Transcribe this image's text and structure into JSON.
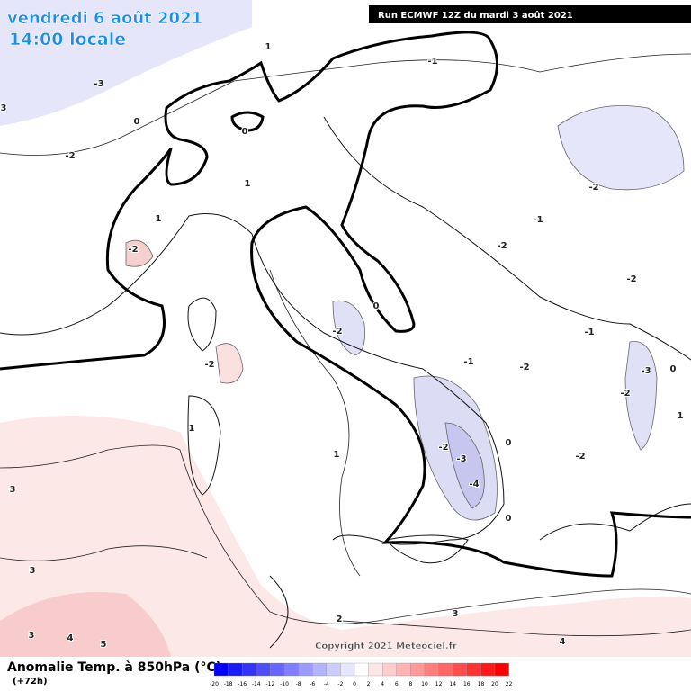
{
  "header": {
    "date": "vendredi 6 août 2021",
    "time": "14:00 locale",
    "run": "Run ECMWF 12Z du mardi 3 août 2021"
  },
  "map": {
    "contour_labels": [
      -2,
      -3,
      3,
      0,
      0,
      1,
      -1,
      1,
      1,
      -2,
      -2,
      -2,
      0,
      -1,
      -2,
      -1,
      -2,
      -2,
      -2,
      -1,
      -3,
      0,
      -2,
      1,
      1,
      1,
      0,
      -2,
      -3,
      -4,
      -2,
      0,
      3,
      3,
      2,
      3,
      4,
      4,
      3,
      5
    ],
    "copyright": "Copyright 2021 Meteociel.fr"
  },
  "footer": {
    "title": "Anomalie Temp. à 850hPa (°C)",
    "lead": "(+72h)",
    "scale": [
      -20,
      -18,
      -16,
      -14,
      -12,
      -10,
      -8,
      -6,
      -4,
      -2,
      0,
      2,
      4,
      6,
      8,
      10,
      12,
      14,
      16,
      18,
      20,
      22
    ],
    "colors": [
      "#0000ff",
      "#1a1aff",
      "#3333ff",
      "#4d4dff",
      "#6666ff",
      "#7f7fff",
      "#9999ff",
      "#b3b3ff",
      "#ccccff",
      "#e6e6ff",
      "#ffffff",
      "#ffe6e6",
      "#ffcccc",
      "#ffb3b3",
      "#ff9999",
      "#ff7f7f",
      "#ff6666",
      "#ff4d4d",
      "#ff3333",
      "#ff1a1a",
      "#ff0000"
    ]
  }
}
